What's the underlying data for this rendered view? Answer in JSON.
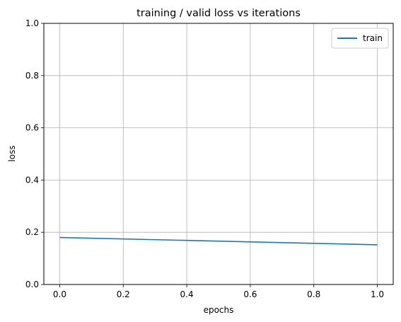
{
  "chart_data": {
    "type": "line",
    "title": "training / valid loss vs iterations",
    "xlabel": "epochs",
    "ylabel": "loss",
    "xlim": [
      -0.05,
      1.05
    ],
    "ylim": [
      0.0,
      1.0
    ],
    "xticks": [
      0.0,
      0.2,
      0.4,
      0.6,
      0.8,
      1.0
    ],
    "yticks": [
      0.0,
      0.2,
      0.4,
      0.6,
      0.8,
      1.0
    ],
    "xtick_labels": [
      "0.0",
      "0.2",
      "0.4",
      "0.6",
      "0.8",
      "1.0"
    ],
    "ytick_labels": [
      "0.0",
      "0.2",
      "0.4",
      "0.6",
      "0.8",
      "1.0"
    ],
    "grid": true,
    "legend_position": "top-right",
    "series": [
      {
        "name": "train",
        "color": "#1f77b4",
        "x": [
          0.0,
          1.0
        ],
        "y": [
          0.18,
          0.152
        ]
      }
    ]
  }
}
